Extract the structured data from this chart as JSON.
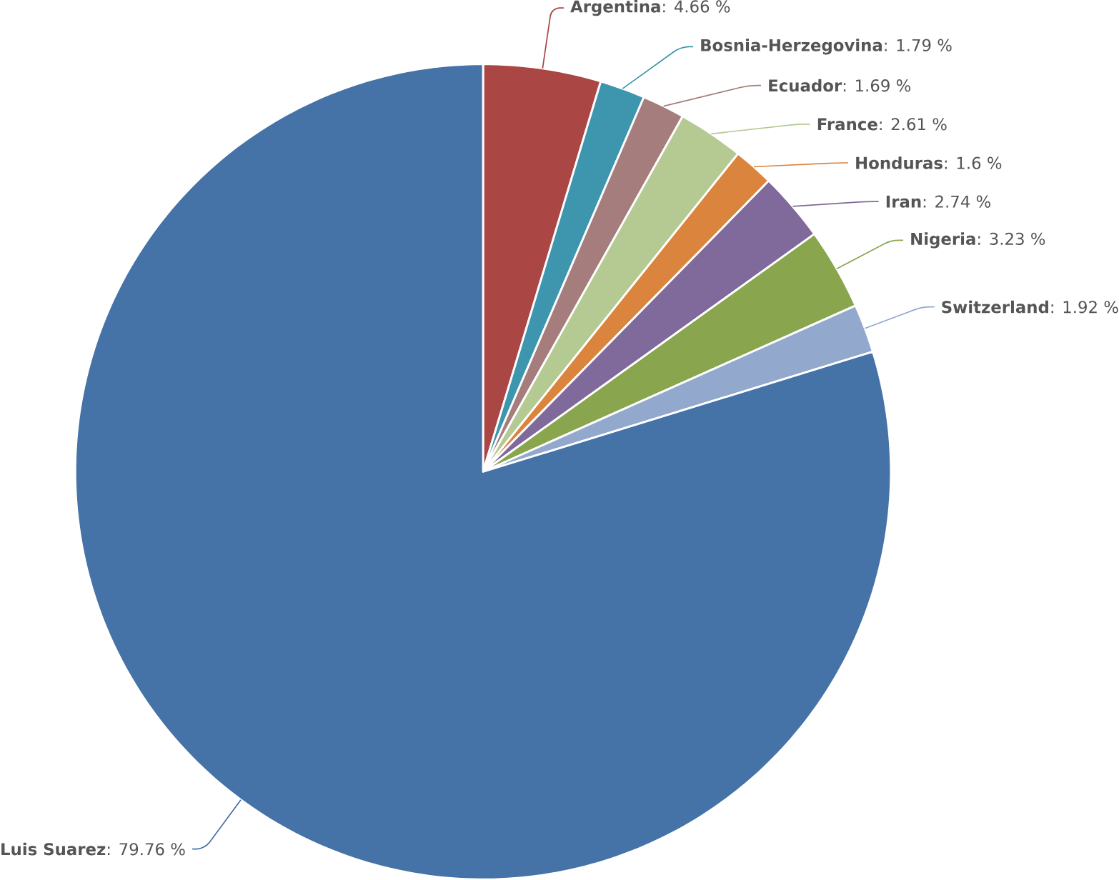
{
  "chart_data": {
    "type": "pie",
    "categories": [
      "Argentina",
      "Bosnia-Herzegovina",
      "Ecuador",
      "France",
      "Honduras",
      "Iran",
      "Nigeria",
      "Switzerland",
      "Luis Suarez"
    ],
    "values": [
      4.66,
      1.79,
      1.69,
      2.61,
      1.6,
      2.74,
      3.23,
      1.92,
      79.76
    ],
    "value_labels": [
      ": 4.66 %",
      ": 1.79 %",
      ": 1.69 %",
      ": 2.61 %",
      ": 1.6 %",
      ": 2.74 %",
      ": 3.23 %",
      ": 1.92 %",
      ": 79.76 %"
    ],
    "colors": [
      "#aa4643",
      "#3d96ae",
      "#a47d7c",
      "#b5ca92",
      "#db843d",
      "#80699b",
      "#89a54e",
      "#92a8cd",
      "#4572a7"
    ]
  }
}
